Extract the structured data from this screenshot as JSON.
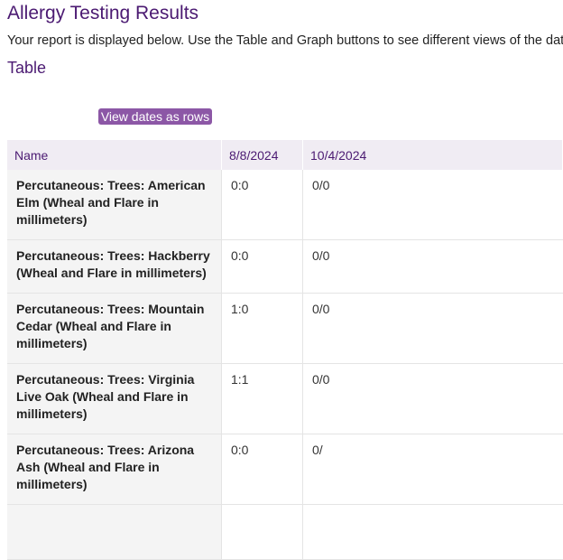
{
  "header": {
    "title": "Allergy Testing Results",
    "description": "Your report is displayed below. Use the Table and Graph buttons to see different views of the data."
  },
  "section": {
    "title": "Table",
    "button": "View dates as rows"
  },
  "table": {
    "columns": [
      "Name",
      "8/8/2024",
      "10/4/2024"
    ],
    "rows": [
      [
        "Percutaneous: Trees: American Elm (Wheal and Flare in millimeters)",
        "0:0",
        "0/0"
      ],
      [
        "Percutaneous: Trees: Hackberry (Wheal and Flare in millimeters)",
        "0:0",
        "0/0"
      ],
      [
        "Percutaneous: Trees: Mountain Cedar (Wheal and Flare in millimeters)",
        "1:0",
        "0/0"
      ],
      [
        "Percutaneous: Trees: Virginia Live Oak (Wheal and Flare in millimeters)",
        "1:1",
        "0/0"
      ],
      [
        "Percutaneous: Trees: Arizona Ash (Wheal and Flare in millimeters)",
        "0:0",
        "0/"
      ]
    ]
  }
}
